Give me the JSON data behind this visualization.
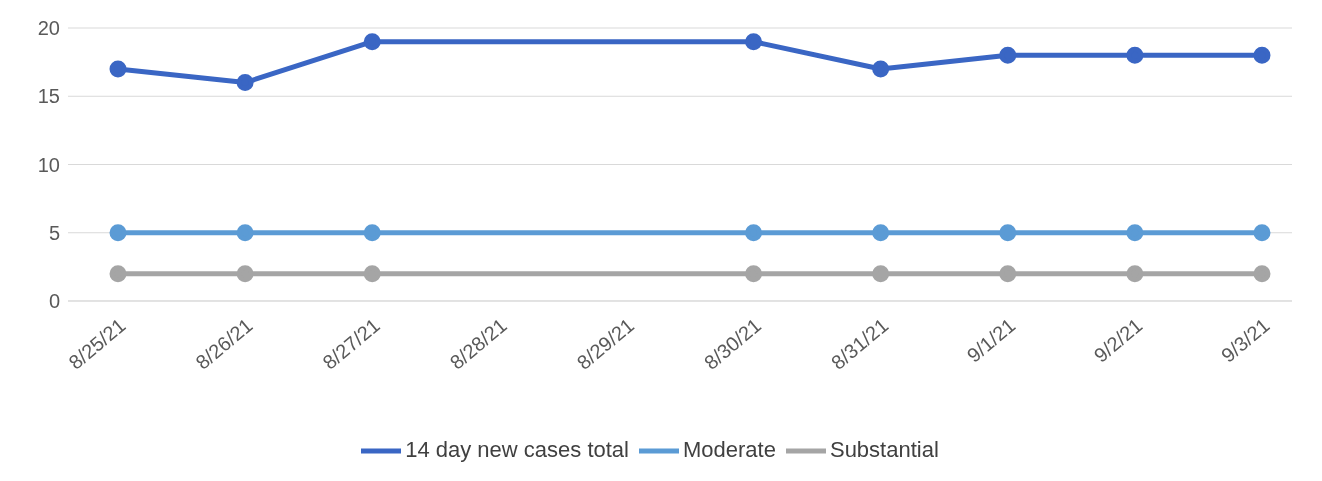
{
  "chart_data": {
    "type": "line",
    "categories": [
      "8/25/21",
      "8/26/21",
      "8/27/21",
      "8/28/21",
      "8/29/21",
      "8/30/21",
      "8/31/21",
      "9/1/21",
      "9/2/21",
      "9/3/21"
    ],
    "series": [
      {
        "name": "14 day new cases total",
        "color": "#3a66c4",
        "values": [
          17,
          16,
          19,
          null,
          null,
          19,
          17,
          18,
          18,
          18
        ]
      },
      {
        "name": "Substantial",
        "color": "#a5a5a5",
        "values": [
          2,
          2,
          2,
          null,
          null,
          2,
          2,
          2,
          2,
          2
        ]
      },
      {
        "name": "Moderate",
        "color": "#5b9bd5",
        "values": [
          5,
          5,
          5,
          null,
          null,
          5,
          5,
          5,
          5,
          5
        ]
      }
    ],
    "ylim": [
      0,
      20
    ],
    "yticks": [
      0,
      5,
      10,
      15,
      20
    ],
    "grid": "y",
    "legend": "bottom",
    "marker": "circle",
    "line_style": "solid"
  }
}
